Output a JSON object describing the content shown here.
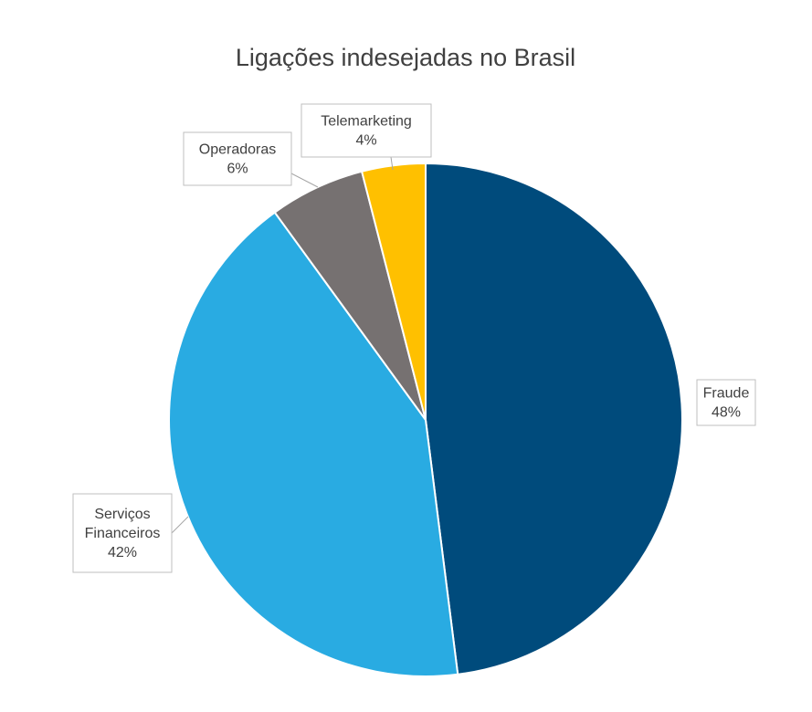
{
  "chart_data": {
    "type": "pie",
    "title": "Ligações indesejadas no Brasil",
    "categories": [
      "Fraude",
      "Serviços Financeiros",
      "Operadoras",
      "Telemarketing"
    ],
    "values": [
      48,
      42,
      6,
      4
    ],
    "colors": [
      "#004b7c",
      "#29abe2",
      "#767171",
      "#ffc000"
    ],
    "labels": [
      {
        "category": "Fraude",
        "lines": [
          "Fraude",
          "48%"
        ]
      },
      {
        "category": "Serviços Financeiros",
        "lines": [
          "Serviços",
          "Financeiros",
          "42%"
        ]
      },
      {
        "category": "Operadoras",
        "lines": [
          "Operadoras",
          "6%"
        ]
      },
      {
        "category": "Telemarketing",
        "lines": [
          "Telemarketing",
          "4%"
        ]
      }
    ],
    "start_angle_deg": 0,
    "direction": "clockwise"
  }
}
